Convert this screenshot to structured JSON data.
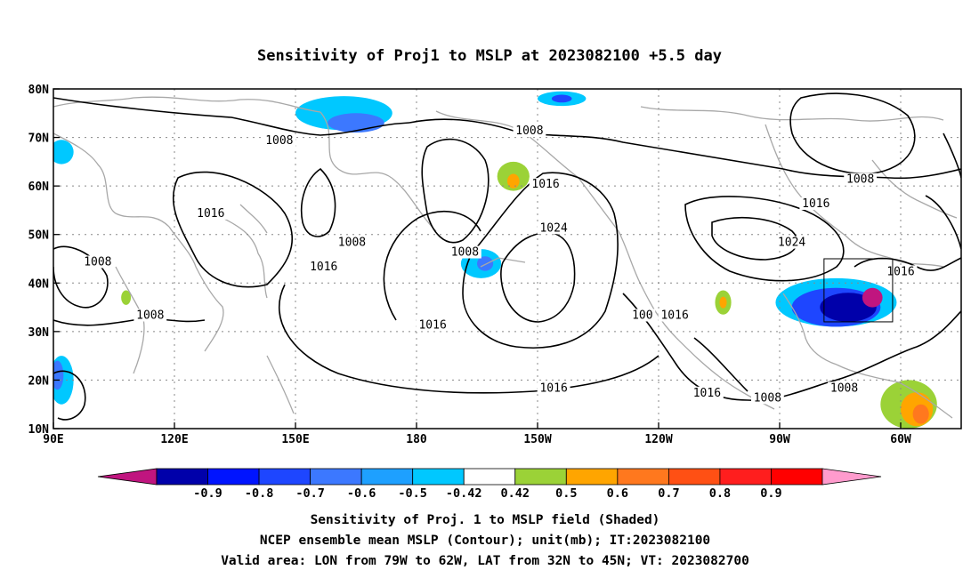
{
  "title": "Sensitivity of Proj1 to MSLP at 2023082100 +5.5 day",
  "map": {
    "lon_ticks": [
      {
        "lon": 90,
        "label": "90E"
      },
      {
        "lon": 120,
        "label": "120E"
      },
      {
        "lon": 150,
        "label": "150E"
      },
      {
        "lon": 180,
        "label": "180"
      },
      {
        "lon": 210,
        "label": "150W"
      },
      {
        "lon": 240,
        "label": "120W"
      },
      {
        "lon": 270,
        "label": "90W"
      },
      {
        "lon": 300,
        "label": "60W"
      }
    ],
    "lat_ticks": [
      {
        "lat": 80,
        "label": "80N"
      },
      {
        "lat": 70,
        "label": "70N"
      },
      {
        "lat": 60,
        "label": "60N"
      },
      {
        "lat": 50,
        "label": "50N"
      },
      {
        "lat": 40,
        "label": "40N"
      },
      {
        "lat": 30,
        "label": "30N"
      },
      {
        "lat": 20,
        "label": "20N"
      },
      {
        "lat": 10,
        "label": "10N"
      }
    ],
    "extent": {
      "lon": [
        90,
        315
      ],
      "lat": [
        10,
        80
      ]
    },
    "grid": "dotted",
    "valid_box": {
      "lon": [
        281,
        298
      ],
      "lat": [
        32,
        45
      ]
    },
    "contour_labels": [
      {
        "text": "1008",
        "lon": 146,
        "lat": 69
      },
      {
        "text": "1008",
        "lon": 208,
        "lat": 71
      },
      {
        "text": "1008",
        "lon": 290,
        "lat": 61
      },
      {
        "text": "1016",
        "lon": 212,
        "lat": 60
      },
      {
        "text": "1016",
        "lon": 279,
        "lat": 56
      },
      {
        "text": "1016",
        "lon": 129,
        "lat": 54
      },
      {
        "text": "1008",
        "lon": 164,
        "lat": 48
      },
      {
        "text": "1024",
        "lon": 214,
        "lat": 51
      },
      {
        "text": "1024",
        "lon": 273,
        "lat": 48
      },
      {
        "text": "1008",
        "lon": 192,
        "lat": 46
      },
      {
        "text": "1016",
        "lon": 157,
        "lat": 43
      },
      {
        "text": "1008",
        "lon": 101,
        "lat": 44
      },
      {
        "text": "1016",
        "lon": 300,
        "lat": 42
      },
      {
        "text": "1008",
        "lon": 114,
        "lat": 33
      },
      {
        "text": "1016",
        "lon": 244,
        "lat": 33
      },
      {
        "text": "100",
        "lon": 236,
        "lat": 33
      },
      {
        "text": "1016",
        "lon": 184,
        "lat": 31
      },
      {
        "text": "1016",
        "lon": 214,
        "lat": 18
      },
      {
        "text": "1016",
        "lon": 252,
        "lat": 17
      },
      {
        "text": "1008",
        "lon": 286,
        "lat": 18
      },
      {
        "text": "1008",
        "lon": 267,
        "lat": 16
      }
    ],
    "shading": [
      {
        "level": -0.5,
        "lon": 162,
        "lat": 75,
        "rx": 12,
        "ry": 3.5
      },
      {
        "level": -0.6,
        "lon": 165,
        "lat": 73,
        "rx": 7,
        "ry": 2
      },
      {
        "level": -0.5,
        "lon": 216,
        "lat": 78,
        "rx": 6,
        "ry": 1.5
      },
      {
        "level": -0.7,
        "lon": 216,
        "lat": 78,
        "rx": 2.5,
        "ry": 0.8
      },
      {
        "level": -0.5,
        "lon": 92,
        "lat": 67,
        "rx": 3,
        "ry": 2.5
      },
      {
        "level": -0.5,
        "lon": 92,
        "lat": 20,
        "rx": 3,
        "ry": 5
      },
      {
        "level": -0.6,
        "lon": 91,
        "lat": 21,
        "rx": 1.5,
        "ry": 3
      },
      {
        "level": -0.5,
        "lon": 196,
        "lat": 44,
        "rx": 5,
        "ry": 3
      },
      {
        "level": -0.6,
        "lon": 197,
        "lat": 44,
        "rx": 2,
        "ry": 1.5
      },
      {
        "level": 0.5,
        "lon": 204,
        "lat": 62,
        "rx": 4,
        "ry": 3
      },
      {
        "level": 0.6,
        "lon": 204,
        "lat": 61,
        "rx": 1.5,
        "ry": 1.5
      },
      {
        "level": 0.5,
        "lon": 108,
        "lat": 37,
        "rx": 1.2,
        "ry": 1.5
      },
      {
        "level": 0.5,
        "lon": 256,
        "lat": 36,
        "rx": 2,
        "ry": 2.5
      },
      {
        "level": 0.6,
        "lon": 256,
        "lat": 36,
        "rx": 0.9,
        "ry": 1.2
      },
      {
        "level": -0.5,
        "lon": 284,
        "lat": 36,
        "rx": 15,
        "ry": 5
      },
      {
        "level": -0.7,
        "lon": 284,
        "lat": 35,
        "rx": 11,
        "ry": 4
      },
      {
        "level": -0.8,
        "lon": 287,
        "lat": 35,
        "rx": 7,
        "ry": 3
      },
      {
        "level": -0.9,
        "lon": 293,
        "lat": 37,
        "rx": 2.5,
        "ry": 2
      },
      {
        "level": 0.5,
        "lon": 302,
        "lat": 15,
        "rx": 7,
        "ry": 5
      },
      {
        "level": 0.6,
        "lon": 304,
        "lat": 14,
        "rx": 4,
        "ry": 3.5
      },
      {
        "level": 0.7,
        "lon": 305,
        "lat": 13,
        "rx": 2,
        "ry": 2
      }
    ]
  },
  "colorbar": {
    "colors": [
      "#c0157f",
      "#0000aa",
      "#0014ff",
      "#1e46ff",
      "#3c78ff",
      "#1ea0ff",
      "#00c8ff",
      "#ffffff",
      "#9bd237",
      "#ffa500",
      "#ff781e",
      "#ff5014",
      "#ff1e1e",
      "#ff0000",
      "#ff9bcd"
    ],
    "labels": [
      "-0.9",
      "-0.8",
      "-0.7",
      "-0.6",
      "-0.5",
      "-0.42",
      "0.42",
      "0.5",
      "0.6",
      "0.7",
      "0.8",
      "0.9"
    ]
  },
  "caption": [
    "Sensitivity of Proj. 1 to MSLP field (Shaded)",
    "NCEP ensemble mean MSLP (Contour); unit(mb); IT:2023082100",
    "Valid area: LON from 79W to 62W, LAT from 32N to 45N; VT: 2023082700"
  ]
}
